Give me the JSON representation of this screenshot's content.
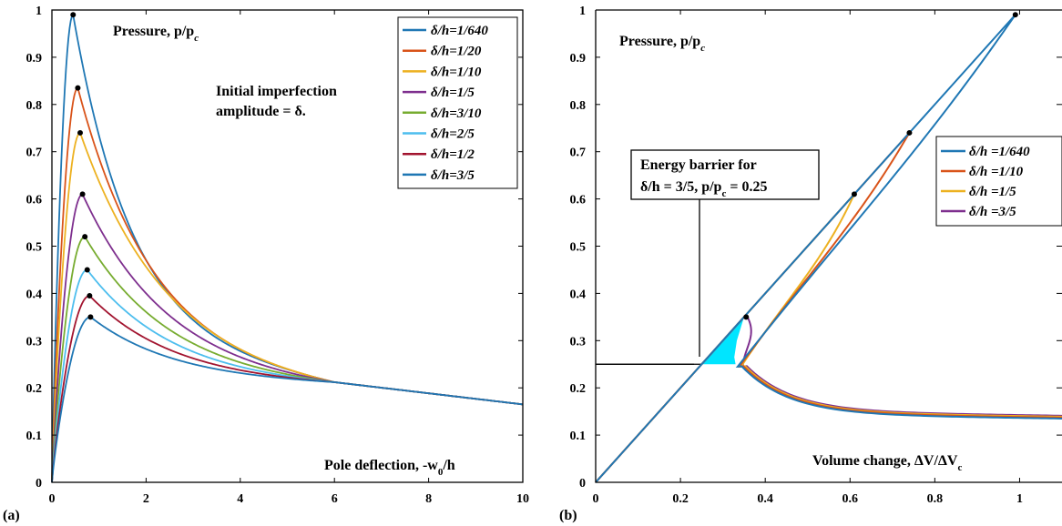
{
  "chart_data": [
    {
      "type": "line",
      "panel_label": "(a)",
      "ylabel": "Pressure, p/p",
      "ylabel_sub": "c",
      "xlabel": "Pole deflection, -w",
      "xlabel_sub": "0",
      "xlabel_tail": "/h",
      "xlim": [
        0,
        10
      ],
      "ylim": [
        0,
        1
      ],
      "xticks": [
        "0",
        "2",
        "4",
        "6",
        "8",
        "10"
      ],
      "yticks": [
        "0",
        "0.1",
        "0.2",
        "0.3",
        "0.4",
        "0.5",
        "0.6",
        "0.7",
        "0.8",
        "0.9",
        "1"
      ],
      "annotation": [
        "Initial imperfection",
        "amplitude = δ."
      ],
      "legend_position": "top-right",
      "series": [
        {
          "name": "δ/h=1/640",
          "color": "#1f77b4",
          "peak_x": 0.45,
          "peak_y": 0.99,
          "k": 4.0
        },
        {
          "name": "δ/h=1/20",
          "color": "#d95319",
          "peak_x": 0.55,
          "peak_y": 0.835,
          "k": 3.0
        },
        {
          "name": "δ/h=1/10",
          "color": "#edb120",
          "peak_x": 0.6,
          "peak_y": 0.74,
          "k": 2.5
        },
        {
          "name": "δ/h=1/5",
          "color": "#7e2f8e",
          "peak_x": 0.65,
          "peak_y": 0.61,
          "k": 2.5
        },
        {
          "name": "δ/h=3/10",
          "color": "#77ac30",
          "peak_x": 0.7,
          "peak_y": 0.52,
          "k": 2.5
        },
        {
          "name": "δ/h=2/5",
          "color": "#4dbeee",
          "peak_x": 0.75,
          "peak_y": 0.45,
          "k": 2.5
        },
        {
          "name": "δ/h=1/2",
          "color": "#a2142f",
          "peak_x": 0.8,
          "peak_y": 0.395,
          "k": 2.5
        },
        {
          "name": "δ/h=3/5",
          "color": "#1f77b4",
          "peak_x": 0.82,
          "peak_y": 0.35,
          "k": 2.5
        }
      ],
      "tail_points": [
        [
          6,
          0.212
        ],
        [
          10,
          0.165
        ]
      ]
    },
    {
      "type": "line",
      "panel_label": "(b)",
      "ylabel": "Pressure, p/p",
      "ylabel_sub": "c",
      "xlabel": "Volume change, ΔV/ΔV",
      "xlabel_sub": "c",
      "xlim": [
        0,
        1.1
      ],
      "ylim": [
        0,
        1
      ],
      "xticks": [
        "0",
        "0.2",
        "0.4",
        "0.6",
        "0.8",
        "1"
      ],
      "yticks": [
        "0",
        "0.1",
        "0.2",
        "0.3",
        "0.4",
        "0.5",
        "0.6",
        "0.7",
        "0.8",
        "0.9",
        "1"
      ],
      "annotation": [
        "Energy barrier for",
        "δ/h = 3/5, p/p",
        "c",
        " = 0.25"
      ],
      "legend_position": "top-right",
      "series": [
        {
          "name": "δ/h =1/640",
          "color": "#1f77b4",
          "peak_x": 0.99,
          "peak_y": 0.99
        },
        {
          "name": "δ/h =1/10",
          "color": "#d95319",
          "peak_x": 0.74,
          "peak_y": 0.74
        },
        {
          "name": "δ/h =1/5",
          "color": "#edb120",
          "peak_x": 0.61,
          "peak_y": 0.61
        },
        {
          "name": "δ/h =3/5",
          "color": "#7e2f8e",
          "peak_x": 0.355,
          "peak_y": 0.35
        }
      ],
      "barrier_pressure": 0.25,
      "fill_color": "#00e5ff"
    }
  ]
}
